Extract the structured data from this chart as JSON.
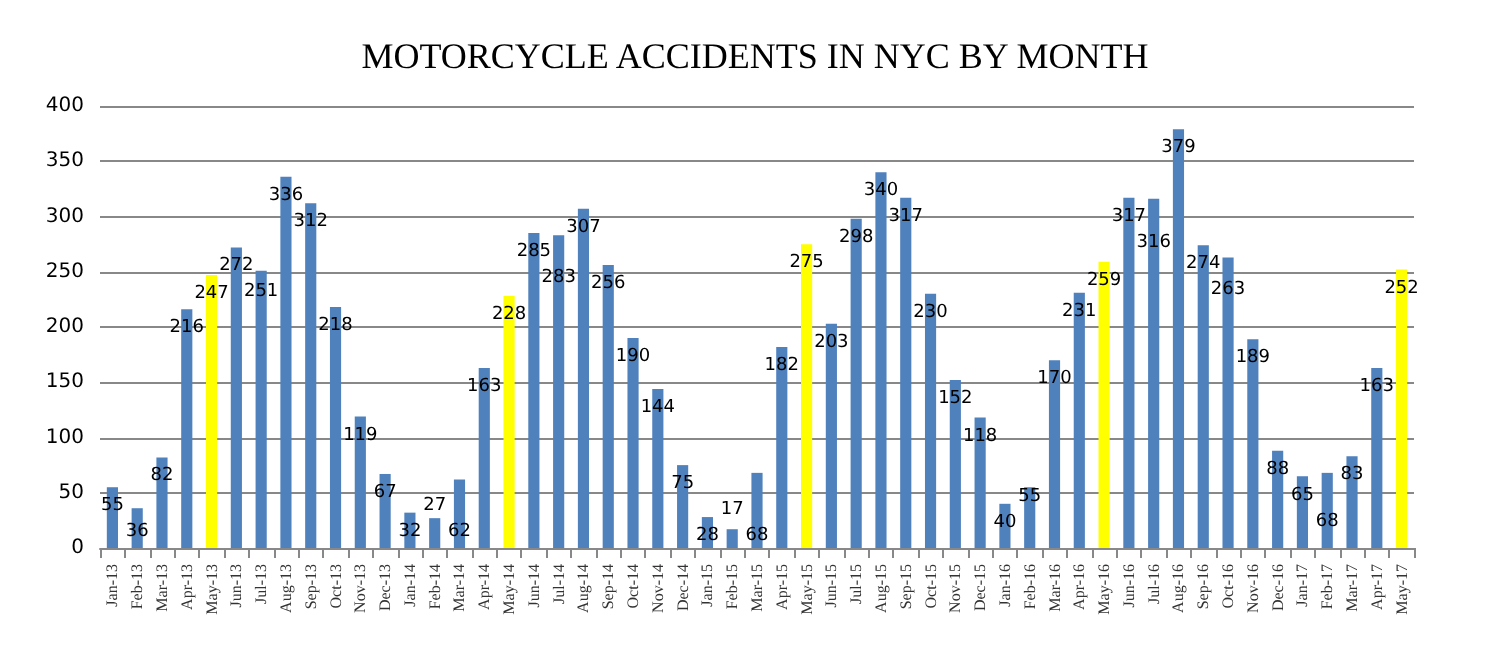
{
  "chart_data": {
    "type": "bar",
    "title": "MOTORCYCLE ACCIDENTS IN NYC BY MONTH",
    "categories": [
      "Jan-13",
      "Feb-13",
      "Mar-13",
      "Apr-13",
      "May-13",
      "Jun-13",
      "Jul-13",
      "Aug-13",
      "Sep-13",
      "Oct-13",
      "Nov-13",
      "Dec-13",
      "Jan-14",
      "Feb-14",
      "Mar-14",
      "Apr-14",
      "May-14",
      "Jun-14",
      "Jul-14",
      "Aug-14",
      "Sep-14",
      "Oct-14",
      "Nov-14",
      "Dec-14",
      "Jan-15",
      "Feb-15",
      "Mar-15",
      "Apr-15",
      "May-15",
      "Jun-15",
      "Jul-15",
      "Aug-15",
      "Sep-15",
      "Oct-15",
      "Nov-15",
      "Dec-15",
      "Jan-16",
      "Feb-16",
      "Mar-16",
      "Apr-16",
      "May-16",
      "Jun-16",
      "Jul-16",
      "Aug-16",
      "Sep-16",
      "Oct-16",
      "Nov-16",
      "Dec-16",
      "Jan-17",
      "Feb-17",
      "Mar-17",
      "Apr-17",
      "May-17"
    ],
    "values": [
      55,
      36,
      82,
      216,
      247,
      272,
      251,
      336,
      312,
      218,
      119,
      67,
      32,
      27,
      62,
      163,
      228,
      285,
      283,
      307,
      256,
      190,
      144,
      75,
      28,
      17,
      68,
      182,
      275,
      203,
      298,
      340,
      317,
      230,
      152,
      118,
      40,
      55,
      170,
      231,
      259,
      317,
      316,
      379,
      274,
      263,
      189,
      88,
      65,
      68,
      83,
      163,
      252
    ],
    "colors": [
      "#4f81bd",
      "#4f81bd",
      "#4f81bd",
      "#4f81bd",
      "#ffff00",
      "#4f81bd",
      "#4f81bd",
      "#4f81bd",
      "#4f81bd",
      "#4f81bd",
      "#4f81bd",
      "#4f81bd",
      "#4f81bd",
      "#4f81bd",
      "#4f81bd",
      "#4f81bd",
      "#ffff00",
      "#4f81bd",
      "#4f81bd",
      "#4f81bd",
      "#4f81bd",
      "#4f81bd",
      "#4f81bd",
      "#4f81bd",
      "#4f81bd",
      "#4f81bd",
      "#4f81bd",
      "#4f81bd",
      "#ffff00",
      "#4f81bd",
      "#4f81bd",
      "#4f81bd",
      "#4f81bd",
      "#4f81bd",
      "#4f81bd",
      "#4f81bd",
      "#4f81bd",
      "#4f81bd",
      "#4f81bd",
      "#4f81bd",
      "#ffff00",
      "#4f81bd",
      "#4f81bd",
      "#4f81bd",
      "#4f81bd",
      "#4f81bd",
      "#4f81bd",
      "#4f81bd",
      "#4f81bd",
      "#4f81bd",
      "#4f81bd",
      "#4f81bd",
      "#ffff00"
    ],
    "ylim": [
      0,
      400
    ],
    "yticks": [
      0,
      50,
      100,
      150,
      200,
      250,
      300,
      350,
      400
    ],
    "grid": "y",
    "data_labels": true
  }
}
